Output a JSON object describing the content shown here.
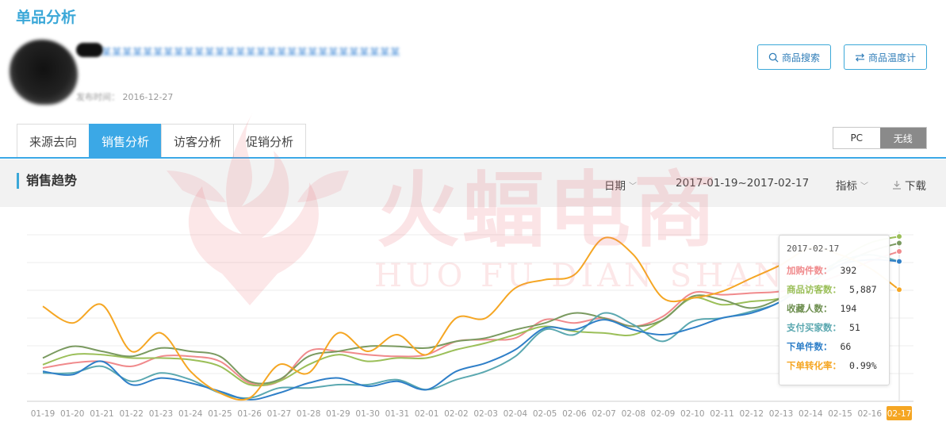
{
  "page": {
    "title": "单品分析"
  },
  "product": {
    "name": "某某某某某某某某某某某某某某某某某某某某某某某某某某某某某",
    "publish_label": "发布时间：",
    "publish_date": "2016-12-27"
  },
  "actions": {
    "search_label": "商品搜索",
    "temperature_label": "商品温度计"
  },
  "tabs": [
    {
      "label": "来源去向",
      "active": false
    },
    {
      "label": "销售分析",
      "active": true
    },
    {
      "label": "访客分析",
      "active": false
    },
    {
      "label": "促销分析",
      "active": false
    }
  ],
  "device": {
    "pc": "PC",
    "wireless": "无线",
    "selected": "无线"
  },
  "section": {
    "title": "销售趋势",
    "date_label": "日期",
    "date_range": "2017-01-19~2017-02-17",
    "index_label": "指标",
    "download_label": "下载"
  },
  "watermark": {
    "text": "火蝠电商",
    "sub": "HUO FU DIAN SHANG"
  },
  "chart_data": {
    "type": "line",
    "x": [
      "01-19",
      "01-20",
      "01-21",
      "01-22",
      "01-23",
      "01-24",
      "01-25",
      "01-26",
      "01-27",
      "01-28",
      "01-29",
      "01-30",
      "01-31",
      "02-01",
      "02-02",
      "02-03",
      "02-04",
      "02-05",
      "02-06",
      "02-07",
      "02-08",
      "02-09",
      "02-10",
      "02-11",
      "02-12",
      "02-13",
      "02-14",
      "02-15",
      "02-16",
      "02-17"
    ],
    "highlighted_x": "02-17",
    "y_scale": "normalized 0-1 (no y-axis labels shown)",
    "grid": "horizontal",
    "series": [
      {
        "name": "加购件数",
        "color": "#f08a8c",
        "values": [
          0.2,
          0.23,
          0.24,
          0.21,
          0.27,
          0.27,
          0.24,
          0.11,
          0.12,
          0.3,
          0.3,
          0.28,
          0.27,
          0.28,
          0.36,
          0.37,
          0.38,
          0.49,
          0.47,
          0.5,
          0.45,
          0.51,
          0.65,
          0.64,
          0.65,
          0.66,
          0.7,
          0.76,
          0.84,
          0.9
        ]
      },
      {
        "name": "商品访客数",
        "color": "#9bbf59",
        "values": [
          0.22,
          0.28,
          0.28,
          0.26,
          0.26,
          0.25,
          0.21,
          0.1,
          0.12,
          0.22,
          0.28,
          0.24,
          0.26,
          0.26,
          0.31,
          0.35,
          0.4,
          0.45,
          0.42,
          0.41,
          0.4,
          0.49,
          0.62,
          0.58,
          0.6,
          0.62,
          0.7,
          0.85,
          0.95,
          0.99
        ]
      },
      {
        "name": "收藏人数",
        "color": "#7a9a60",
        "values": [
          0.26,
          0.33,
          0.3,
          0.27,
          0.32,
          0.3,
          0.27,
          0.12,
          0.13,
          0.27,
          0.3,
          0.33,
          0.33,
          0.32,
          0.36,
          0.38,
          0.43,
          0.47,
          0.53,
          0.5,
          0.45,
          0.49,
          0.63,
          0.61,
          0.56,
          0.62,
          0.72,
          0.82,
          0.9,
          0.95
        ]
      },
      {
        "name": "支付买家数",
        "color": "#5ba8b0",
        "values": [
          0.17,
          0.17,
          0.21,
          0.12,
          0.17,
          0.13,
          0.05,
          0.02,
          0.08,
          0.08,
          0.1,
          0.1,
          0.13,
          0.07,
          0.13,
          0.18,
          0.27,
          0.43,
          0.4,
          0.53,
          0.46,
          0.36,
          0.48,
          0.5,
          0.54,
          0.6,
          0.74,
          0.84,
          0.88,
          0.84
        ]
      },
      {
        "name": "下单件数",
        "color": "#2f7fc8",
        "values": [
          0.18,
          0.16,
          0.24,
          0.1,
          0.14,
          0.11,
          0.06,
          0.01,
          0.05,
          0.11,
          0.14,
          0.09,
          0.12,
          0.07,
          0.18,
          0.23,
          0.31,
          0.44,
          0.43,
          0.49,
          0.43,
          0.4,
          0.44,
          0.5,
          0.53,
          0.6,
          0.72,
          0.82,
          0.85,
          0.84
        ]
      },
      {
        "name": "下单转化率",
        "color": "#f5a623",
        "values": [
          0.57,
          0.47,
          0.58,
          0.3,
          0.41,
          0.18,
          0.05,
          0.02,
          0.22,
          0.17,
          0.41,
          0.3,
          0.4,
          0.28,
          0.5,
          0.5,
          0.68,
          0.73,
          0.76,
          0.98,
          0.88,
          0.62,
          0.62,
          0.66,
          0.74,
          0.82,
          0.92,
          0.88,
          0.8,
          0.67
        ]
      }
    ]
  },
  "tooltip": {
    "date": "2017-02-17",
    "rows": [
      {
        "label": "加购件数：",
        "value": "392",
        "color": "#f08a8c"
      },
      {
        "label": "商品访客数：",
        "value": "5,887",
        "color": "#9bbf59"
      },
      {
        "label": "收藏人数：",
        "value": "194",
        "color": "#6e8f50"
      },
      {
        "label": "支付买家数：",
        "value": "51",
        "color": "#5ba8b0"
      },
      {
        "label": "下单件数：",
        "value": "66",
        "color": "#2f7fc8"
      },
      {
        "label": "下单转化率：",
        "value": "0.99%",
        "color": "#f5a623"
      }
    ]
  }
}
